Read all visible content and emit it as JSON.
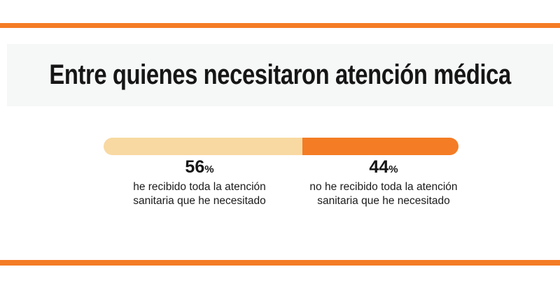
{
  "title": "Entre quienes necesitaron atención médica",
  "colors": {
    "accent": "#f47c25",
    "light_segment": "#f8d9a2",
    "title_band_bg": "#f6f7f7",
    "text": "#161616"
  },
  "chart_data": {
    "type": "bar",
    "orientation": "horizontal_stacked",
    "title": "Entre quienes necesitaron atención médica",
    "unit": "%",
    "total": 100,
    "legend": false,
    "axes": false,
    "segments": [
      {
        "name": "received_all_care",
        "value": 56,
        "value_label": "56",
        "unit": "%",
        "color": "#f8d9a2",
        "label": "he recibido toda la atención sanitaria que he necesitado",
        "label_lines": [
          "he recibido toda la atención",
          "sanitaria que he necesitado"
        ]
      },
      {
        "name": "not_received_all_care",
        "value": 44,
        "value_label": "44",
        "unit": "%",
        "color": "#f47c25",
        "label": "no he recibido toda la atención sanitaria que he necesitado",
        "label_lines": [
          "no he recibido toda la atención",
          "sanitaria que he necesitado"
        ]
      }
    ]
  }
}
